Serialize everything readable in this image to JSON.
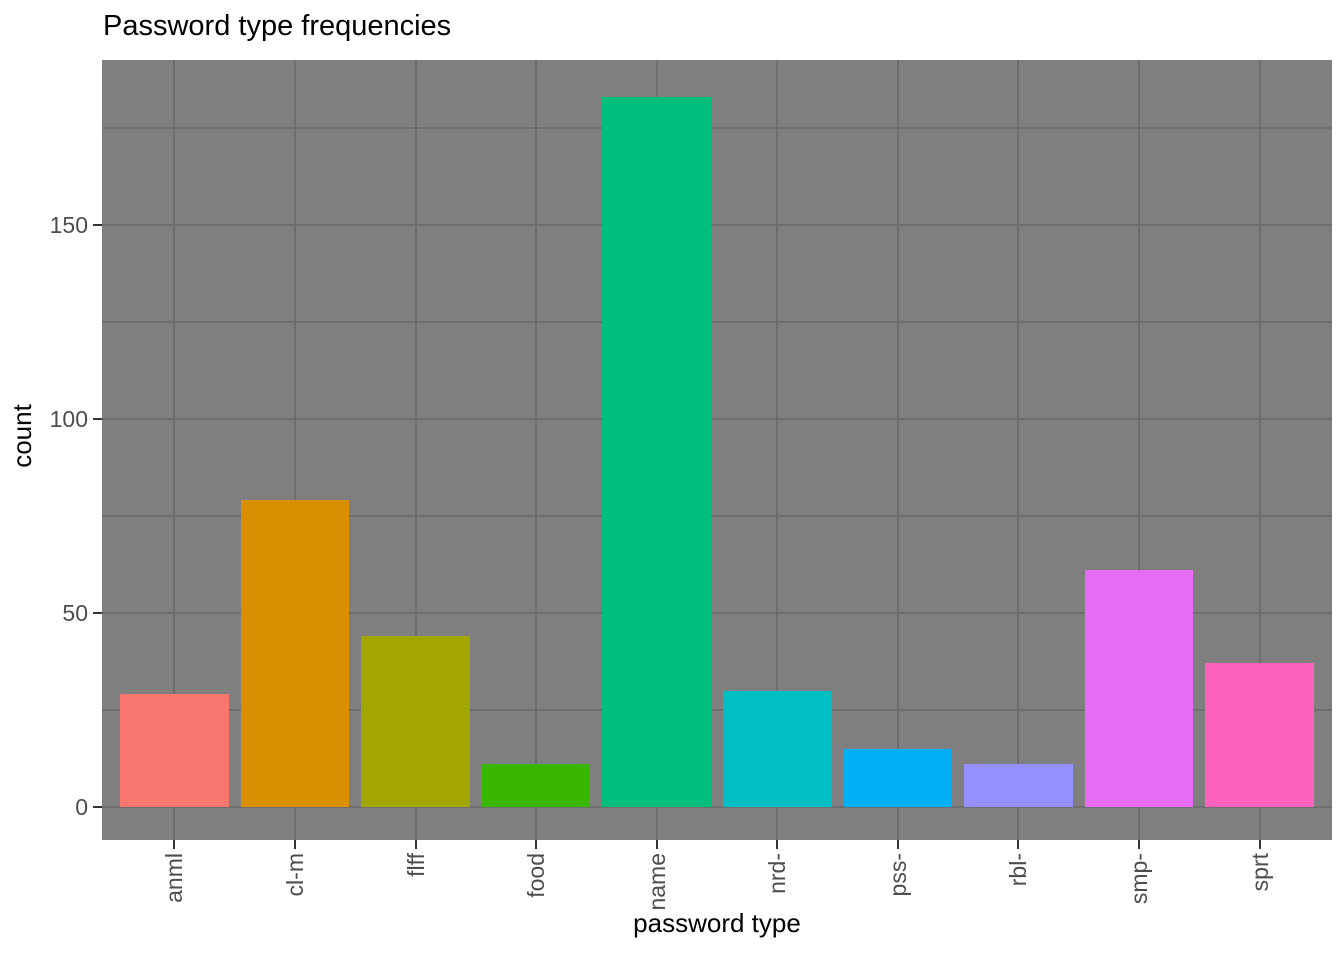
{
  "chart_data": {
    "type": "bar",
    "title": "Password type frequencies",
    "xlabel": "password type",
    "ylabel": "count",
    "categories": [
      "anml",
      "cl-m",
      "flff",
      "food",
      "name",
      "nrd-",
      "pss-",
      "rbl-",
      "smp-",
      "sprt"
    ],
    "values": [
      29,
      79,
      44,
      11,
      183,
      30,
      15,
      11,
      61,
      37
    ],
    "bar_colors": [
      "#F8766D",
      "#D89000",
      "#A3A500",
      "#39B600",
      "#00BF7D",
      "#00BFC4",
      "#00B0F6",
      "#9590FF",
      "#E76BF3",
      "#FF62BC"
    ],
    "ylim": [
      0,
      193
    ],
    "y_major_ticks": [
      0,
      50,
      100,
      150
    ],
    "y_minor_gridlines": [
      25,
      75,
      125,
      175
    ],
    "grid": "on",
    "legend": "none",
    "panel_background": "#7F7F7F",
    "gridline_color": "#6E6E6E",
    "tick_label_color": "#4D4D4D",
    "tick_mark_color": "#333333",
    "title_color": "#000000"
  }
}
